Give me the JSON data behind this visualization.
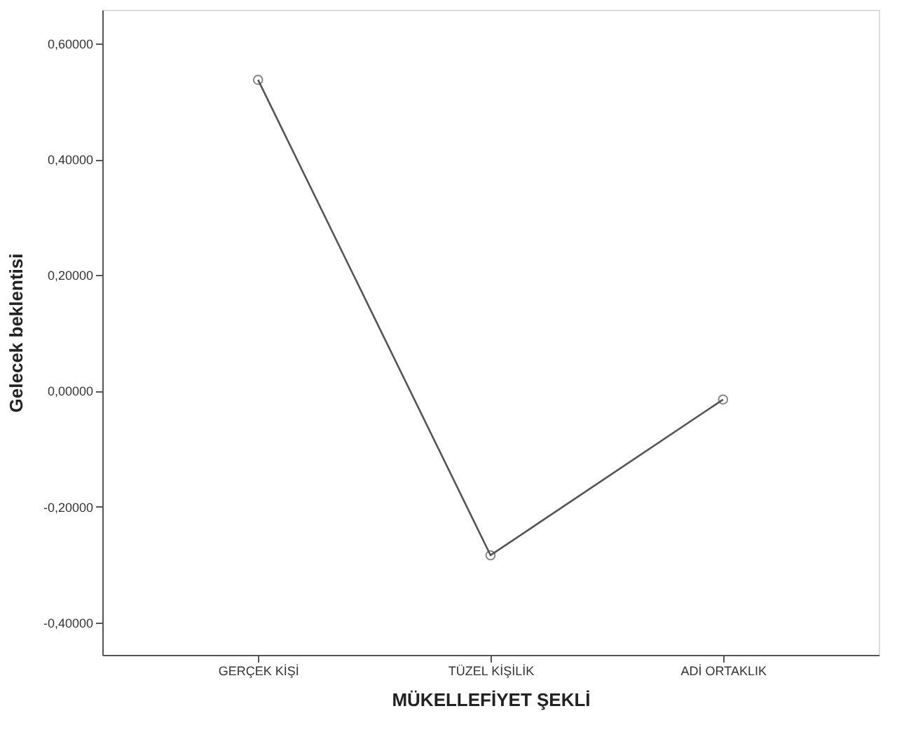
{
  "chart_data": {
    "type": "line",
    "xlabel": "MÜKELLEFİYET ŞEKLİ",
    "ylabel": "Gelecek beklentisi",
    "categories": [
      "GERÇEK KİŞİ",
      "TÜZEL KİŞİLİK",
      "ADİ ORTAKLIK"
    ],
    "series": [
      {
        "color": "#555555",
        "values": [
          0.537,
          -0.284,
          -0.015
        ]
      }
    ],
    "ylim": [
      -0.456,
      0.658
    ],
    "yticks": [
      {
        "value": -0.4,
        "label": "-0,40000"
      },
      {
        "value": -0.2,
        "label": "-0,20000"
      },
      {
        "value": 0,
        "label": "0,00000"
      },
      {
        "value": 0.2,
        "label": "0,20000"
      },
      {
        "value": 0.4,
        "label": "0,40000"
      },
      {
        "value": 0.6,
        "label": "0,60000"
      }
    ],
    "marker": "circle",
    "line_style": "solid",
    "grid": false,
    "legend": false
  }
}
